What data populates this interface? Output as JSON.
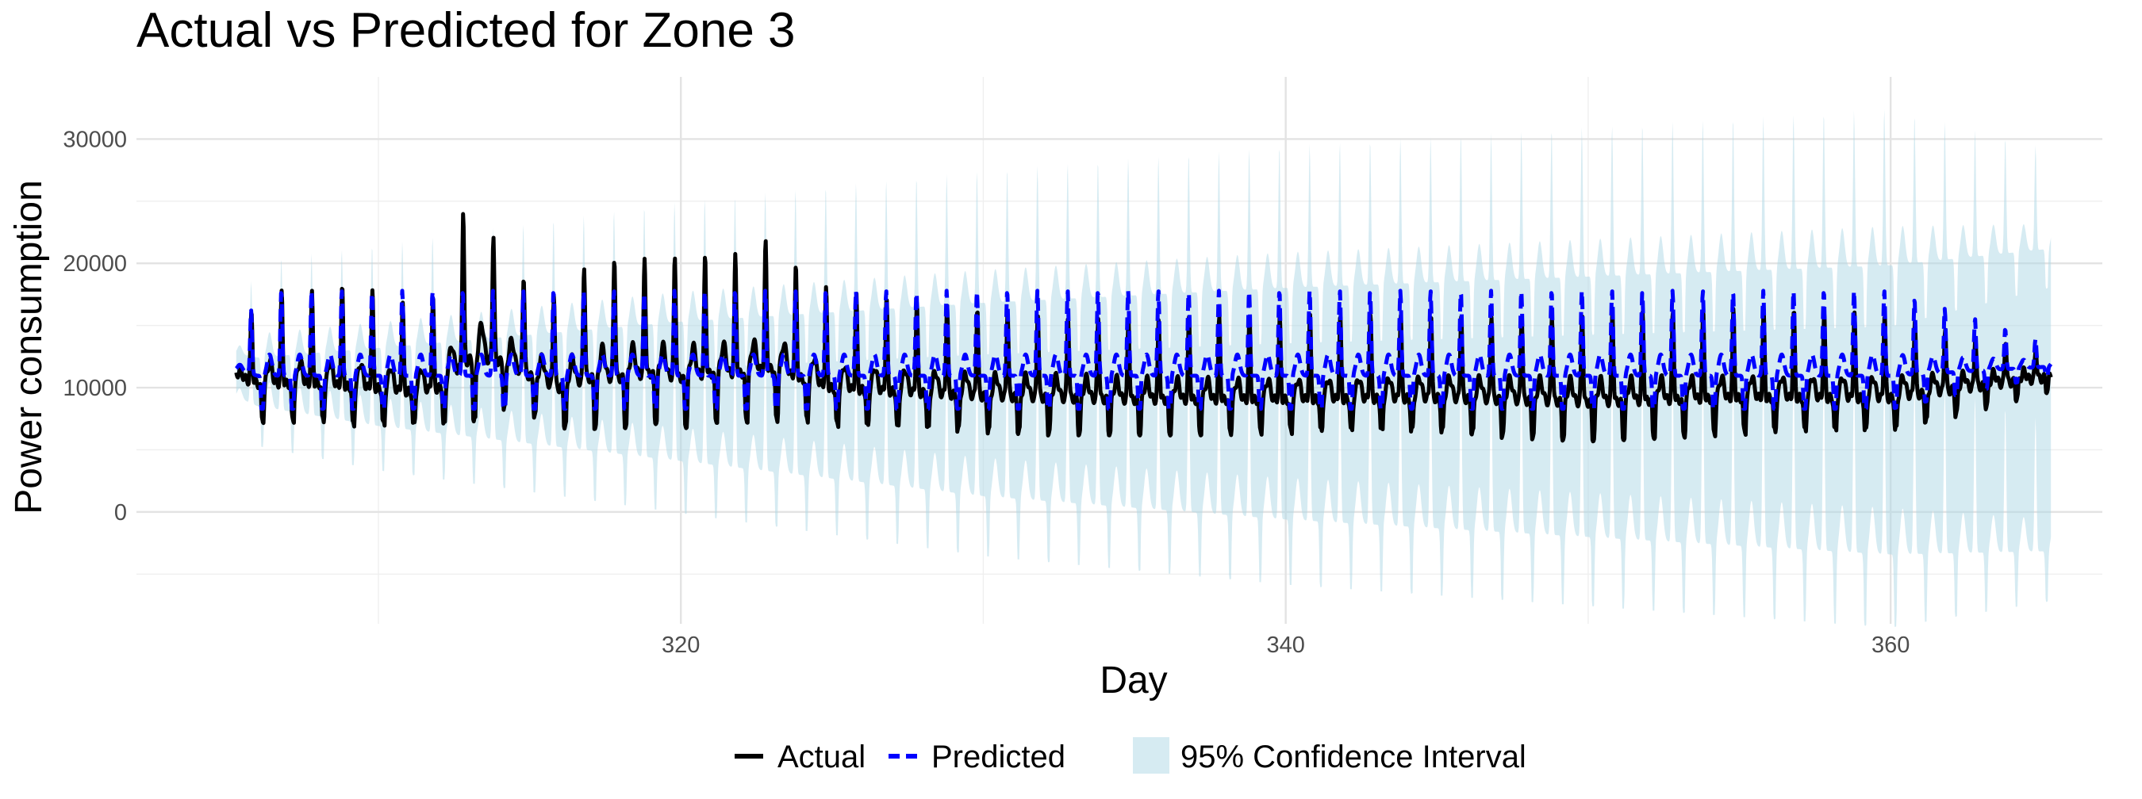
{
  "chart_data": {
    "type": "line",
    "title": "Actual vs Predicted for Zone 3",
    "xlabel": "Day",
    "ylabel": "Power consumption",
    "xlim": [
      302,
      367
    ],
    "ylim": [
      -9000,
      35000
    ],
    "x_ticks": [
      320,
      340,
      360
    ],
    "x_minor_ticks": [
      310,
      330,
      350
    ],
    "y_ticks": [
      0,
      10000,
      20000,
      30000
    ],
    "y_minor_ticks": [
      -5000,
      5000,
      15000,
      25000
    ],
    "grid": true,
    "legend_position": "bottom",
    "legend": {
      "actual": "Actual",
      "predicted": "Predicted",
      "interval": "95% Confidence Interval"
    },
    "colors": {
      "actual": "#000000",
      "predicted": "#0000ff",
      "interval": "#add8e6"
    },
    "series": [
      {
        "name": "Actual",
        "x": [
          305.3,
          306.0,
          307.0,
          308.0,
          309.0,
          310.0,
          311.0,
          312.0,
          313.0,
          314.0,
          315.0,
          316.0,
          317.0,
          318.0,
          319.0,
          320.0,
          321.0,
          322.0,
          323.0,
          324.0,
          325.0,
          330.0,
          335.0,
          340.0,
          345.0,
          350.0,
          355.0,
          360.0,
          365.3
        ],
        "daily_peak": [
          12000,
          17500,
          17500,
          17500,
          18000,
          17500,
          16500,
          17500,
          25800,
          21500,
          18500,
          17500,
          20500,
          20500,
          20500,
          20500,
          20500,
          20500,
          21800,
          19000,
          17500,
          16500,
          15500,
          15500,
          16000,
          16000,
          16000,
          16000,
          13000
        ],
        "daily_trough": [
          10500,
          7500,
          7500,
          7500,
          7000,
          7000,
          7000,
          7000,
          7000,
          8500,
          8000,
          7000,
          7000,
          7000,
          7500,
          7000,
          7500,
          7500,
          7500,
          7500,
          7000,
          6500,
          6500,
          6500,
          6500,
          6000,
          6500,
          6500,
          10000
        ]
      },
      {
        "name": "Predicted",
        "x": [
          305.3,
          306.0,
          310.0,
          320.0,
          330.0,
          340.0,
          350.0,
          360.0,
          365.3
        ],
        "daily_peak": [
          12500,
          17800,
          17800,
          17800,
          17800,
          17800,
          17800,
          17800,
          13500
        ],
        "daily_trough": [
          11000,
          8300,
          8300,
          8300,
          8300,
          8300,
          8300,
          8300,
          11000
        ]
      },
      {
        "name": "95% Confidence Interval",
        "x": [
          305.3,
          310.0,
          320.0,
          330.0,
          340.0,
          350.0,
          360.0,
          365.3
        ],
        "upper_peak": [
          20000,
          21500,
          25000,
          27500,
          29500,
          31000,
          32500,
          33500
        ],
        "lower_trough": [
          6000,
          4000,
          1000,
          -2000,
          -4000,
          -5500,
          -7000,
          -7500
        ]
      }
    ]
  }
}
